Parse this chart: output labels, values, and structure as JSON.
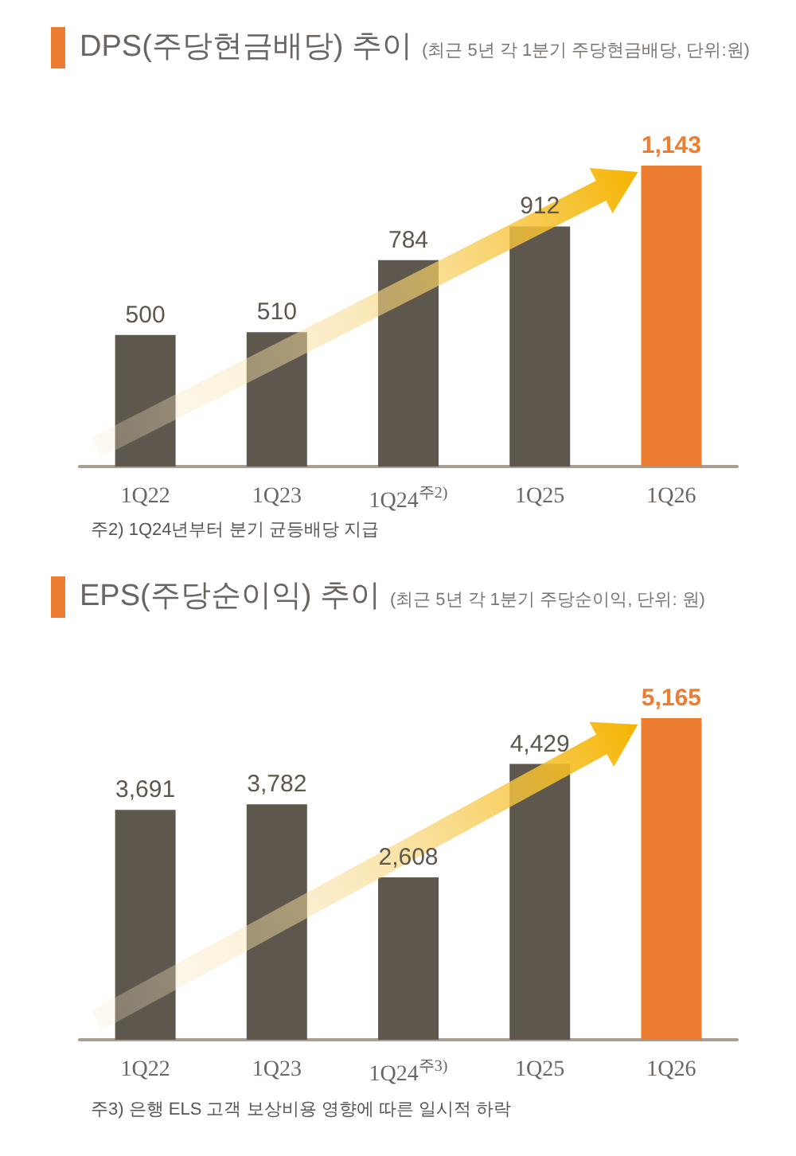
{
  "chart_data": [
    {
      "type": "bar",
      "title": "DPS(주당현금배당) 추이",
      "subtitle": "(최근 5년 각 1분기 주당현금배당, 단위:원)",
      "categories": [
        "1Q22",
        "1Q23",
        "1Q24$^{주2)}$",
        "1Q25",
        "1Q26"
      ],
      "values": [
        500,
        510,
        784,
        912,
        1143
      ],
      "colors": [
        "#5e574d",
        "#5e574d",
        "#5e574d",
        "#5e574d",
        "#ed7d31"
      ],
      "value_labels": [
        "500",
        "510",
        "784",
        "912",
        "1,143"
      ],
      "tick_labels": "x",
      "annotations": [
        "주2) 1Q24년부터 분기 균등배당 지급"
      ]
    },
    {
      "type": "bar",
      "title": "EPS(주당순이익) 추이",
      "subtitle": "(최근 5년 각 1분기 주당순이익, 단위: 원)",
      "categories": [
        "1Q22",
        "1Q23",
        "1Q24$^{주3)}$",
        "1Q25",
        "1Q26"
      ],
      "values": [
        3691,
        3782,
        2608,
        4429,
        5165
      ],
      "colors": [
        "#5e574d",
        "#5e574d",
        "#5e574d",
        "#5e574d",
        "#ed7d31"
      ],
      "value_labels": [
        "3,691",
        "3,782",
        "2,608",
        "4,429",
        "5,165"
      ],
      "tick_labels": "x",
      "annotations": [
        "주3) 은행 ELS 고객 보상비용 영향에 따른 일시적 하락"
      ]
    }
  ]
}
